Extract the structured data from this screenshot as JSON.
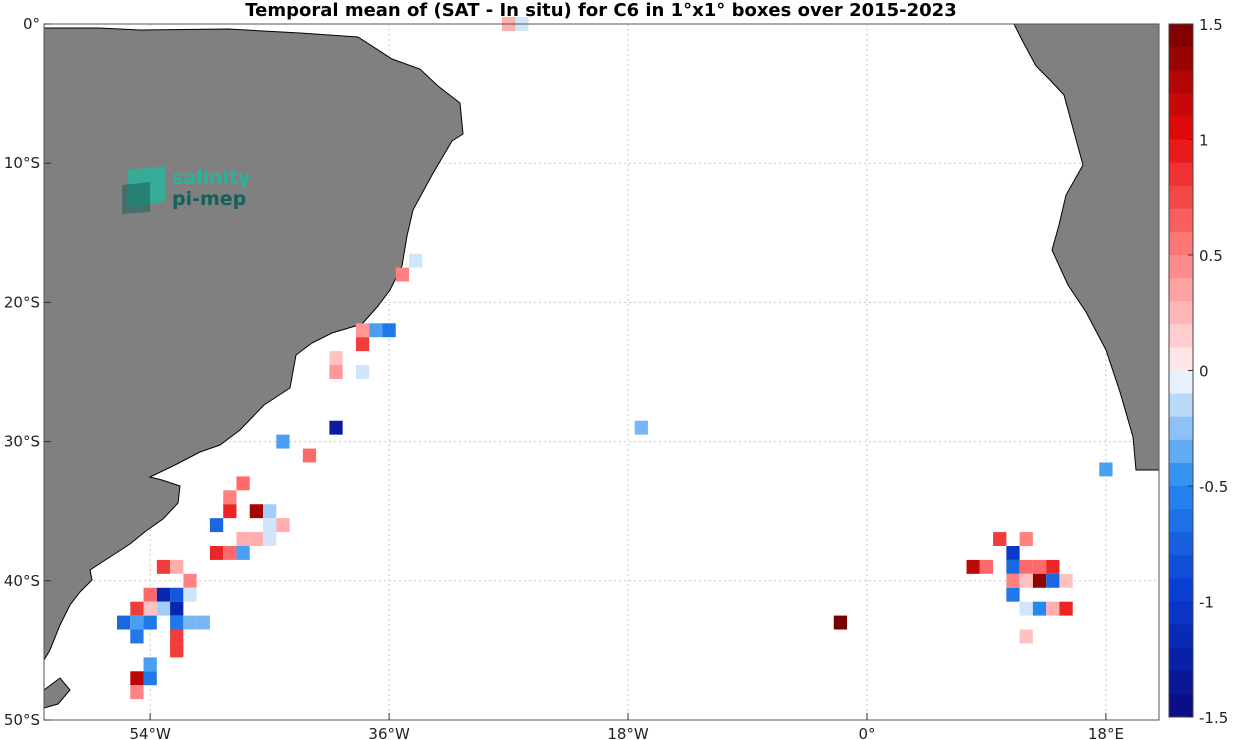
{
  "chart_data": {
    "type": "heatmap",
    "title": "Temporal mean of (SAT - In situ) for C6 in 1°x1° boxes over 2015-2023",
    "xlim": [
      -62,
      22
    ],
    "ylim": [
      -50,
      0
    ],
    "grid": true,
    "x_ticks": [
      -54,
      -36,
      -18,
      0,
      18
    ],
    "x_tick_labels": [
      "54°W",
      "36°W",
      "18°W",
      "0°",
      "18°E"
    ],
    "y_ticks": [
      0,
      -10,
      -20,
      -30,
      -40,
      -50
    ],
    "y_tick_labels": [
      "0°",
      "10°S",
      "20°S",
      "30°S",
      "40°S",
      "50°S"
    ],
    "colorbar": {
      "range": [
        -1.5,
        1.5
      ],
      "levels": 30,
      "ticks": [
        1.5,
        1,
        0.5,
        0,
        -0.5,
        -1,
        -1.5
      ],
      "tick_labels": [
        "1.5",
        "1",
        "0.5",
        "0",
        "-0.5",
        "-1",
        "-1.5"
      ],
      "colormap": "blue-white-red"
    },
    "cells": [
      {
        "lon": -27,
        "lat": 0,
        "value": 0.3
      },
      {
        "lon": -26,
        "lat": 0,
        "value": -0.1
      },
      {
        "lon": -34,
        "lat": -17,
        "value": -0.1
      },
      {
        "lon": -35,
        "lat": -18,
        "value": 0.5
      },
      {
        "lon": -38,
        "lat": -22,
        "value": 0.4
      },
      {
        "lon": -37,
        "lat": -22,
        "value": -0.4
      },
      {
        "lon": -36,
        "lat": -22,
        "value": -0.6
      },
      {
        "lon": -38,
        "lat": -23,
        "value": 0.8
      },
      {
        "lon": -40,
        "lat": -24,
        "value": 0.2
      },
      {
        "lon": -40,
        "lat": -25,
        "value": 0.4
      },
      {
        "lon": -38,
        "lat": -25,
        "value": -0.1
      },
      {
        "lon": -40,
        "lat": -29,
        "value": -1.3
      },
      {
        "lon": -44,
        "lat": -30,
        "value": -0.4
      },
      {
        "lon": -42,
        "lat": -31,
        "value": 0.6
      },
      {
        "lon": -17,
        "lat": -29,
        "value": -0.3
      },
      {
        "lon": 18,
        "lat": -32,
        "value": -0.4
      },
      {
        "lon": -47,
        "lat": -33,
        "value": 0.6
      },
      {
        "lon": -48,
        "lat": -34,
        "value": 0.5
      },
      {
        "lon": -48,
        "lat": -35,
        "value": 0.9
      },
      {
        "lon": -46,
        "lat": -35,
        "value": 1.3
      },
      {
        "lon": -45,
        "lat": -35,
        "value": -0.2
      },
      {
        "lon": -49,
        "lat": -36,
        "value": -0.7
      },
      {
        "lon": -45,
        "lat": -36,
        "value": -0.1
      },
      {
        "lon": -44,
        "lat": -36,
        "value": 0.3
      },
      {
        "lon": -47,
        "lat": -37,
        "value": 0.3
      },
      {
        "lon": -46,
        "lat": -37,
        "value": 0.3
      },
      {
        "lon": -45,
        "lat": -37,
        "value": -0.1
      },
      {
        "lon": -49,
        "lat": -38,
        "value": 0.9
      },
      {
        "lon": -48,
        "lat": -38,
        "value": 0.6
      },
      {
        "lon": -47,
        "lat": -38,
        "value": -0.4
      },
      {
        "lon": -53,
        "lat": -39,
        "value": 0.8
      },
      {
        "lon": -52,
        "lat": -39,
        "value": 0.3
      },
      {
        "lon": -51,
        "lat": -40,
        "value": 0.5
      },
      {
        "lon": -54,
        "lat": -41,
        "value": 0.6
      },
      {
        "lon": -53,
        "lat": -41,
        "value": -1.2
      },
      {
        "lon": -52,
        "lat": -41,
        "value": -0.8
      },
      {
        "lon": -51,
        "lat": -41,
        "value": -0.1
      },
      {
        "lon": -55,
        "lat": -42,
        "value": 0.8
      },
      {
        "lon": -54,
        "lat": -42,
        "value": 0.2
      },
      {
        "lon": -53,
        "lat": -42,
        "value": -0.2
      },
      {
        "lon": -52,
        "lat": -42,
        "value": -1.2
      },
      {
        "lon": -56,
        "lat": -43,
        "value": -0.7
      },
      {
        "lon": -55,
        "lat": -43,
        "value": -0.4
      },
      {
        "lon": -54,
        "lat": -43,
        "value": -0.6
      },
      {
        "lon": -52,
        "lat": -43,
        "value": -0.6
      },
      {
        "lon": -51,
        "lat": -43,
        "value": -0.3
      },
      {
        "lon": -50,
        "lat": -43,
        "value": -0.3
      },
      {
        "lon": -55,
        "lat": -44,
        "value": -0.6
      },
      {
        "lon": -52,
        "lat": -44,
        "value": 0.8
      },
      {
        "lon": -52,
        "lat": -45,
        "value": 0.8
      },
      {
        "lon": -54,
        "lat": -46,
        "value": -0.4
      },
      {
        "lon": -55,
        "lat": -47,
        "value": 1.2
      },
      {
        "lon": -54,
        "lat": -47,
        "value": -0.6
      },
      {
        "lon": -55,
        "lat": -48,
        "value": 0.5
      },
      {
        "lon": -2,
        "lat": -43,
        "value": 1.5
      },
      {
        "lon": 10,
        "lat": -37,
        "value": 0.8
      },
      {
        "lon": 12,
        "lat": -37,
        "value": 0.5
      },
      {
        "lon": 11,
        "lat": -38,
        "value": -1.0
      },
      {
        "lon": 8,
        "lat": -39,
        "value": 1.2
      },
      {
        "lon": 9,
        "lat": -39,
        "value": 0.6
      },
      {
        "lon": 11,
        "lat": -39,
        "value": -0.7
      },
      {
        "lon": 12,
        "lat": -39,
        "value": 0.6
      },
      {
        "lon": 13,
        "lat": -39,
        "value": 0.6
      },
      {
        "lon": 14,
        "lat": -39,
        "value": 0.9
      },
      {
        "lon": 11,
        "lat": -40,
        "value": 0.5
      },
      {
        "lon": 12,
        "lat": -40,
        "value": 0.2
      },
      {
        "lon": 13,
        "lat": -40,
        "value": 1.4
      },
      {
        "lon": 14,
        "lat": -40,
        "value": -0.7
      },
      {
        "lon": 15,
        "lat": -40,
        "value": 0.2
      },
      {
        "lon": 11,
        "lat": -41,
        "value": -0.6
      },
      {
        "lon": 12,
        "lat": -42,
        "value": -0.1
      },
      {
        "lon": 13,
        "lat": -42,
        "value": -0.5
      },
      {
        "lon": 14,
        "lat": -42,
        "value": 0.3
      },
      {
        "lon": 15,
        "lat": -42,
        "value": 0.9
      },
      {
        "lon": 12,
        "lat": -44,
        "value": 0.2
      }
    ]
  },
  "logo": {
    "line1": "salinity",
    "line2": "pi-mep",
    "accent": "#2bb39a",
    "dark": "#14615a"
  },
  "colors": {
    "land": "#808080",
    "coast": "#000000",
    "grid": "#c8c8c8"
  }
}
